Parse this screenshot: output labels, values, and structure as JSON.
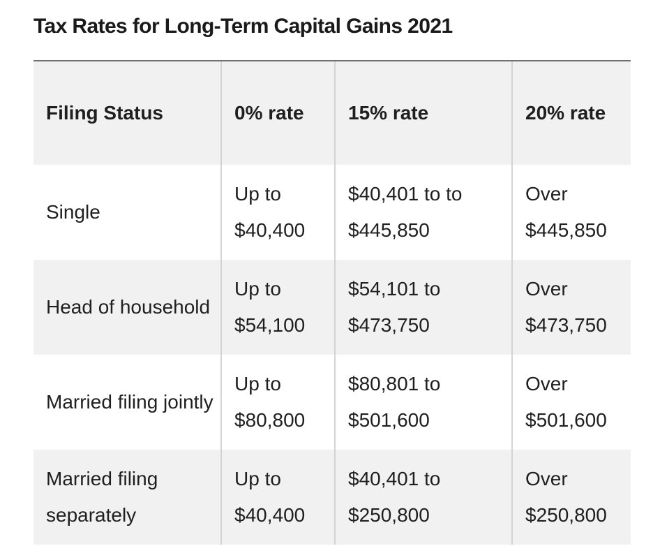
{
  "title": "Tax Rates for Long-Term Capital Gains 2021",
  "table": {
    "headers": [
      "Filing Status",
      "0% rate",
      "15% rate",
      "20% rate"
    ],
    "rows": [
      {
        "status": "Single",
        "zero": "Up to $40,400",
        "fifteen": "$40,401 to to $445,850",
        "twenty": "Over $445,850"
      },
      {
        "status": "Head of household",
        "zero": "Up to $54,100",
        "fifteen": "$54,101 to $473,750",
        "twenty": "Over $473,750"
      },
      {
        "status": "Married filing jointly",
        "zero": "Up to $80,800",
        "fifteen": "$80,801 to $501,600",
        "twenty": "Over $501,600"
      },
      {
        "status": "Married filing separately",
        "zero": "Up to $40,400",
        "fifteen": "$40,401 to $250,800",
        "twenty": "Over $250,800"
      }
    ]
  }
}
